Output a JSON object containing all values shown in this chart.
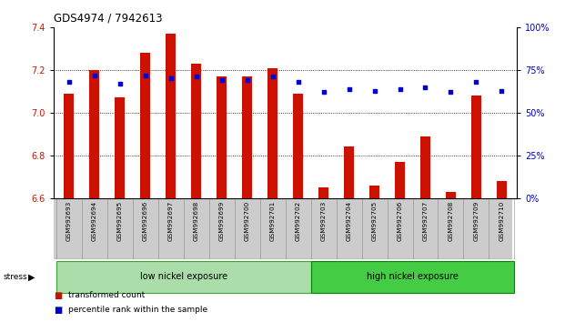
{
  "title": "GDS4974 / 7942613",
  "samples": [
    "GSM992693",
    "GSM992694",
    "GSM992695",
    "GSM992696",
    "GSM992697",
    "GSM992698",
    "GSM992699",
    "GSM992700",
    "GSM992701",
    "GSM992702",
    "GSM992703",
    "GSM992704",
    "GSM992705",
    "GSM992706",
    "GSM992707",
    "GSM992708",
    "GSM992709",
    "GSM992710"
  ],
  "bar_values": [
    7.09,
    7.2,
    7.07,
    7.28,
    7.37,
    7.23,
    7.17,
    7.17,
    7.21,
    7.09,
    6.65,
    6.84,
    6.66,
    6.77,
    6.89,
    6.63,
    7.08,
    6.68
  ],
  "dot_values": [
    68,
    72,
    67,
    72,
    70,
    71,
    69,
    69,
    71,
    68,
    62,
    64,
    63,
    64,
    65,
    62,
    68,
    63
  ],
  "bar_color": "#cc1100",
  "dot_color": "#0000cc",
  "ylim_left": [
    6.6,
    7.4
  ],
  "ylim_right": [
    0,
    100
  ],
  "yticks_left": [
    6.6,
    6.8,
    7.0,
    7.2,
    7.4
  ],
  "yticks_right": [
    0,
    25,
    50,
    75,
    100
  ],
  "ytick_labels_right": [
    "0%",
    "25%",
    "50%",
    "75%",
    "100%"
  ],
  "group1_label": "low nickel exposure",
  "group1_indices": [
    0,
    9
  ],
  "group2_label": "high nickel exposure",
  "group2_indices": [
    10,
    17
  ],
  "group1_color": "#aaddaa",
  "group2_color": "#44cc44",
  "stress_label": "stress",
  "legend1_label": "transformed count",
  "legend2_label": "percentile rank within the sample",
  "bg_color": "#ffffff",
  "tick_label_color_left": "#cc1100",
  "tick_label_color_right": "#0000cc",
  "bar_bottom": 6.6,
  "sample_bg_color": "#cccccc",
  "bar_width": 0.4
}
